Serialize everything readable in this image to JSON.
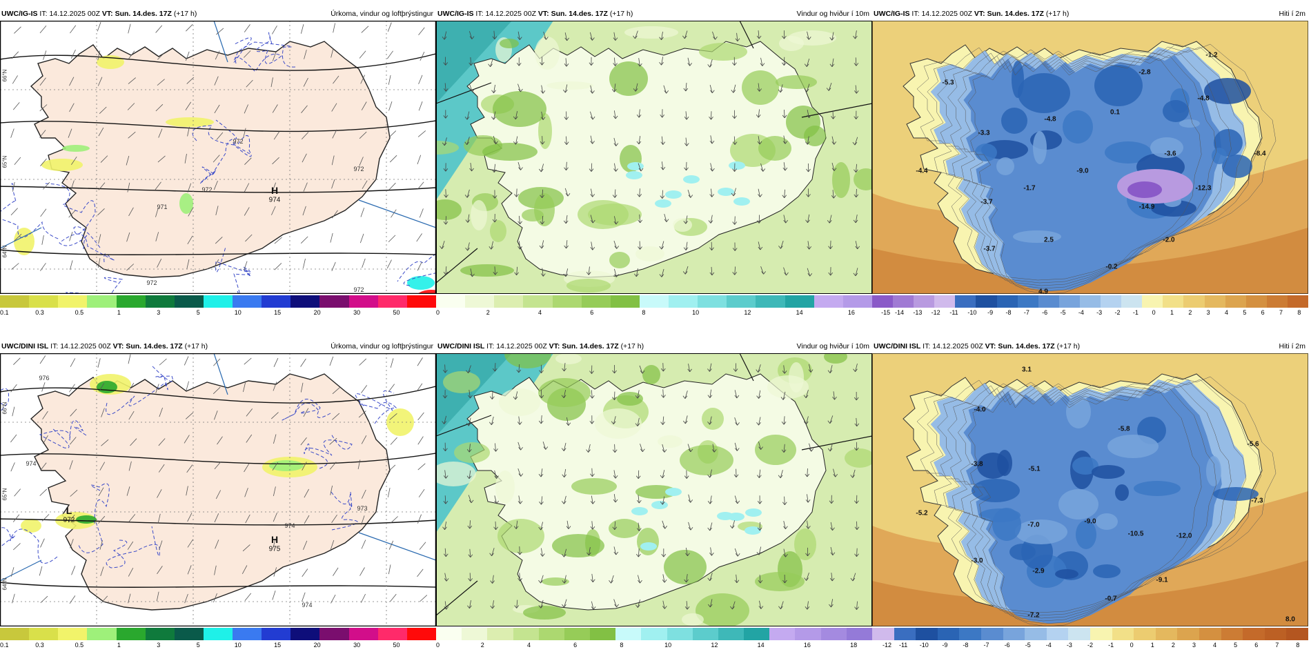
{
  "panels": [
    {
      "id": "p1",
      "model": "UWC/IG-IS",
      "it_label": "IT:",
      "it_value": "14.12.2025 00Z",
      "vt_label": "VT:",
      "vt_value": "Sun. 14.des. 17Z",
      "lead": "(+17 h)",
      "title": "Úrkoma, vindur og loftþrýstingur",
      "type": "precip",
      "colorbar_colors": [
        "#c8c83c",
        "#d9e04a",
        "#f1f36a",
        "#9ef07a",
        "#2aa82e",
        "#0f7a3c",
        "#0a5a4a",
        "#1ff0e8",
        "#3a7af0",
        "#223cd2",
        "#0e0e7a",
        "#7a0e6e",
        "#d20e8a",
        "#ff2a6a",
        "#ff0a0a"
      ],
      "colorbar_ticks": [
        "0.1",
        "0.3",
        "0.5",
        "1",
        "3",
        "5",
        "10",
        "15",
        "20",
        "30",
        "50"
      ],
      "labels": {
        "highs": [
          {
            "letter": "H",
            "value": "974"
          }
        ],
        "lows": [],
        "isobars": [
          "972",
          "972",
          "972",
          "972",
          "971",
          "972"
        ]
      },
      "side_labels": [
        "66°N",
        "65°N",
        "64°N"
      ]
    },
    {
      "id": "p2",
      "model": "UWC/IG-IS",
      "it_label": "IT:",
      "it_value": "14.12.2025 00Z",
      "vt_label": "VT:",
      "vt_value": "Sun. 14.des. 17Z",
      "lead": "(+17 h)",
      "title": "Vindur og hviður í 10m",
      "type": "wind",
      "colorbar_colors": [
        "#fafff0",
        "#eef8d6",
        "#dceeb0",
        "#c4e490",
        "#acd870",
        "#96cc58",
        "#82c044",
        "#c8fafa",
        "#a0f0f0",
        "#7ee0e0",
        "#5ccccc",
        "#3eb8b8",
        "#22a4a4",
        "#c4aaf0",
        "#b49ae8"
      ],
      "colorbar_ticks": [
        "0",
        "2",
        "4",
        "6",
        "8",
        "10",
        "12",
        "14",
        "16"
      ]
    },
    {
      "id": "p3",
      "model": "UWC/IG-IS",
      "it_label": "IT:",
      "it_value": "14.12.2025 00Z",
      "vt_label": "VT:",
      "vt_value": "Sun. 14.des. 17Z",
      "lead": "(+17 h)",
      "title": "Hiti í 2m",
      "type": "temp",
      "colorbar_colors": [
        "#8a5ac8",
        "#a07ad4",
        "#b89ae0",
        "#d0baec",
        "#3a6ec0",
        "#1e50a0",
        "#2a64b4",
        "#3c78c4",
        "#5a8cd0",
        "#78a4dc",
        "#96bce6",
        "#b4d2f0",
        "#cce4f0",
        "#f8f4b0",
        "#f2e088",
        "#eccc70",
        "#e4b85e",
        "#dca44e",
        "#d49040",
        "#cc7c34",
        "#c46a2a"
      ],
      "colorbar_ticks": [
        "-15",
        "-14",
        "-13",
        "-12",
        "-11",
        "-10",
        "-9",
        "-8",
        "-7",
        "-6",
        "-5",
        "-4",
        "-3",
        "-2",
        "-1",
        "0",
        "1",
        "2",
        "3",
        "4",
        "5",
        "6",
        "7",
        "8"
      ],
      "values": [
        "-5.3",
        "-2.8",
        "-1.2",
        "-4.8",
        "0.1",
        "-4.8",
        "-3.3",
        "-3.6",
        "-8.4",
        "-4.4",
        "-9.0",
        "-1.7",
        "-12.3",
        "-3.7",
        "-14.9",
        "2.5",
        "-2.0",
        "-3.7",
        "-0.2",
        "4.9"
      ]
    },
    {
      "id": "p4",
      "model": "UWC/DINI ISL",
      "it_label": "IT:",
      "it_value": "14.12.2025 00Z",
      "vt_label": "VT:",
      "vt_value": "Sun. 14.des. 17Z",
      "lead": "(+17 h)",
      "title": "Úrkoma, vindur og loftþrýstingur",
      "type": "precip",
      "colorbar_colors": [
        "#c8c83c",
        "#d9e04a",
        "#f1f36a",
        "#9ef07a",
        "#2aa82e",
        "#0f7a3c",
        "#0a5a4a",
        "#1ff0e8",
        "#3a7af0",
        "#223cd2",
        "#0e0e7a",
        "#7a0e6e",
        "#d20e8a",
        "#ff2a6a",
        "#ff0a0a"
      ],
      "colorbar_ticks": [
        "0.1",
        "0.3",
        "0.5",
        "1",
        "3",
        "5",
        "10",
        "15",
        "20",
        "30",
        "50"
      ],
      "labels": {
        "highs": [
          {
            "letter": "H",
            "value": "975"
          }
        ],
        "lows": [
          {
            "letter": "L",
            "value": "972"
          }
        ],
        "isobars": [
          "976",
          "974",
          "974",
          "973",
          "974"
        ]
      },
      "side_labels": [
        "66°N",
        "65°N",
        "64°N"
      ]
    },
    {
      "id": "p5",
      "model": "UWC/DINI ISL",
      "it_label": "IT:",
      "it_value": "14.12.2025 00Z",
      "vt_label": "VT:",
      "vt_value": "Sun. 14.des. 17Z",
      "lead": "(+17 h)",
      "title": "Vindur og hviður í 10m",
      "type": "wind",
      "colorbar_colors": [
        "#fafff0",
        "#eef8d6",
        "#dceeb0",
        "#c4e490",
        "#acd870",
        "#96cc58",
        "#82c044",
        "#c8fafa",
        "#a0f0f0",
        "#7ee0e0",
        "#5ccccc",
        "#3eb8b8",
        "#22a4a4",
        "#c4aaf0",
        "#b49ae8",
        "#a48ae0",
        "#947ad8"
      ],
      "colorbar_ticks": [
        "0",
        "2",
        "4",
        "6",
        "8",
        "10",
        "12",
        "14",
        "16",
        "18"
      ]
    },
    {
      "id": "p6",
      "model": "UWC/DINI ISL",
      "it_label": "IT:",
      "it_value": "14.12.2025 00Z",
      "vt_label": "VT:",
      "vt_value": "Sun. 14.des. 17Z",
      "lead": "(+17 h)",
      "title": "Hiti í 2m",
      "type": "temp",
      "colorbar_colors": [
        "#d0baec",
        "#3a6ec0",
        "#1e50a0",
        "#2a64b4",
        "#3c78c4",
        "#5a8cd0",
        "#78a4dc",
        "#96bce6",
        "#b4d2f0",
        "#cce4f0",
        "#f8f4b0",
        "#f2e088",
        "#eccc70",
        "#e4b85e",
        "#dca44e",
        "#d49040",
        "#cc7c34",
        "#c46a2a",
        "#bc6024",
        "#b45620"
      ],
      "colorbar_ticks": [
        "-12",
        "-11",
        "-10",
        "-9",
        "-8",
        "-7",
        "-6",
        "-5",
        "-4",
        "-3",
        "-2",
        "-1",
        "0",
        "1",
        "2",
        "3",
        "4",
        "5",
        "6",
        "7",
        "8"
      ],
      "values": [
        "3.1",
        "-4.0",
        "-5.8",
        "-5.6",
        "-3.8",
        "-5.1",
        "-7.3",
        "-5.2",
        "-7.0",
        "-9.0",
        "-10.5",
        "-12.0",
        "-3.0",
        "-2.9",
        "-9.1",
        "-0.7",
        "-7.2",
        "8.0"
      ]
    }
  ]
}
